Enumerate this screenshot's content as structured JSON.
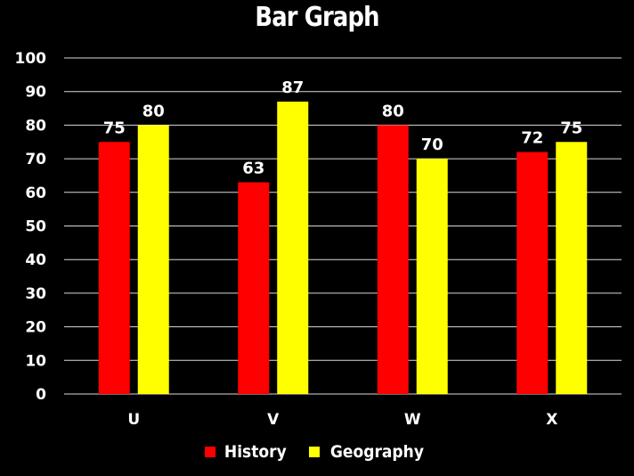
{
  "chart_data": {
    "type": "bar",
    "title": "Bar Graph",
    "categories": [
      "U",
      "V",
      "W",
      "X"
    ],
    "series": [
      {
        "name": "History",
        "values": [
          75,
          63,
          80,
          72
        ],
        "color": "#ff0000"
      },
      {
        "name": "Geography",
        "values": [
          80,
          87,
          70,
          75
        ],
        "color": "#ffff00"
      }
    ],
    "yticks": [
      "0",
      "10",
      "20",
      "30",
      "40",
      "50",
      "60",
      "70",
      "80",
      "90",
      "100"
    ],
    "ylim": [
      0,
      100
    ],
    "grid": true,
    "data_labels": true,
    "legend_position": "bottom",
    "background": "#000000",
    "xlabel": "",
    "ylabel": ""
  }
}
